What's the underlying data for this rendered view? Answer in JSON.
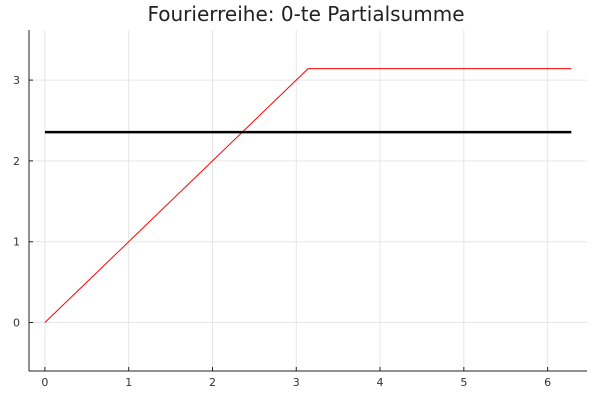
{
  "chart_data": {
    "type": "line",
    "title": "Fourierreihe: 0-te Partialsumme",
    "xlabel": "",
    "ylabel": "",
    "xlim": [
      -0.19,
      6.47
    ],
    "ylim": [
      -0.6,
      3.62
    ],
    "xticks": [
      0,
      1,
      2,
      3,
      4,
      5,
      6
    ],
    "yticks": [
      0,
      1,
      2,
      3
    ],
    "grid": true,
    "legend": "none",
    "series": [
      {
        "color": "#ff0000",
        "width": 1,
        "x": [
          0,
          3.14159,
          6.28319
        ],
        "y": [
          0,
          3.14159,
          3.14159
        ]
      },
      {
        "color": "#000000",
        "width": 2.5,
        "x": [
          0,
          6.28319
        ],
        "y": [
          2.35619,
          2.35619
        ]
      }
    ]
  }
}
